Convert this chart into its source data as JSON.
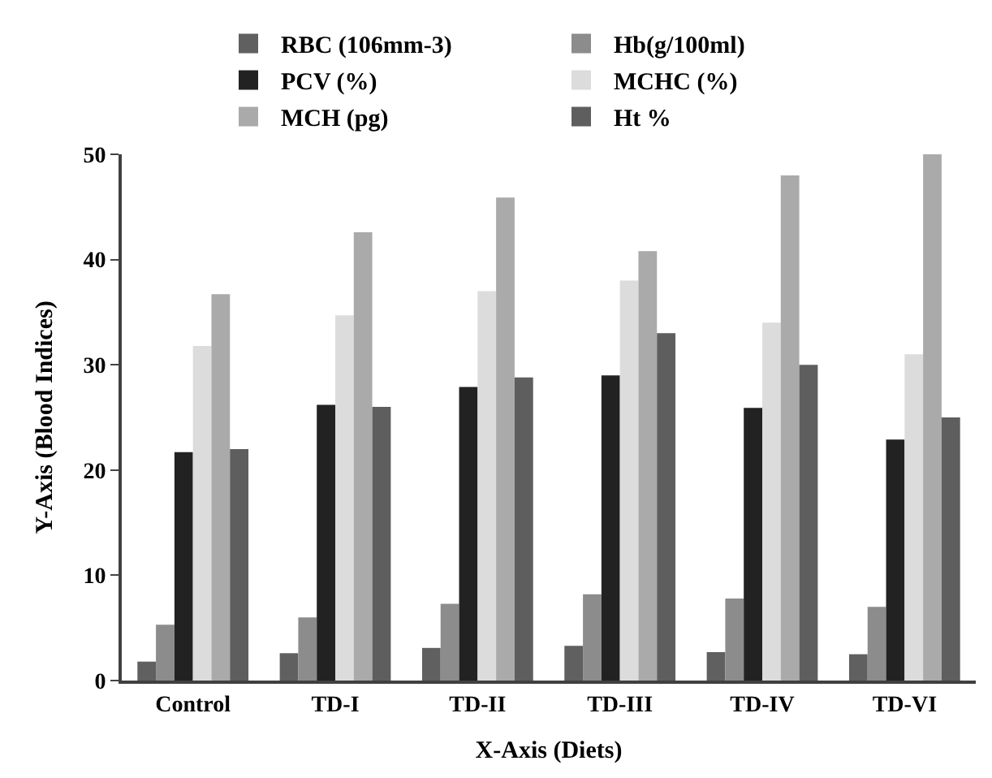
{
  "chart_data": {
    "type": "bar",
    "xlabel": "X-Axis (Diets)",
    "ylabel": "Y-Axis (Blood Indices)",
    "categories": [
      "Control",
      "TD-I",
      "TD-II",
      "TD-III",
      "TD-IV",
      "TD-VI"
    ],
    "series": [
      {
        "name": "RBC (106mm-3)",
        "color": "#606060",
        "values": [
          1.8,
          2.6,
          3.1,
          3.3,
          2.7,
          2.5
        ]
      },
      {
        "name": "Hb(g/100ml)",
        "color": "#8c8c8c",
        "values": [
          5.3,
          6.0,
          7.3,
          8.2,
          7.8,
          7.0
        ]
      },
      {
        "name": "PCV (%)",
        "color": "#222222",
        "values": [
          21.7,
          26.2,
          27.9,
          29.0,
          25.9,
          22.9
        ]
      },
      {
        "name": "MCHC (%)",
        "color": "#dcdcdc",
        "values": [
          31.8,
          34.7,
          37.0,
          38.0,
          34.0,
          31.0
        ]
      },
      {
        "name": "MCH (pg)",
        "color": "#aaaaaa",
        "values": [
          36.7,
          42.6,
          45.9,
          40.8,
          48.0,
          50.0
        ]
      },
      {
        "name": "Ht %",
        "color": "#5e5e5e",
        "values": [
          22.0,
          26.0,
          28.8,
          33.0,
          30.0,
          25.0
        ]
      }
    ],
    "ylim": [
      0,
      50
    ],
    "yticks": [
      0,
      10,
      20,
      30,
      40,
      50
    ],
    "grid": false,
    "legend": "top"
  }
}
